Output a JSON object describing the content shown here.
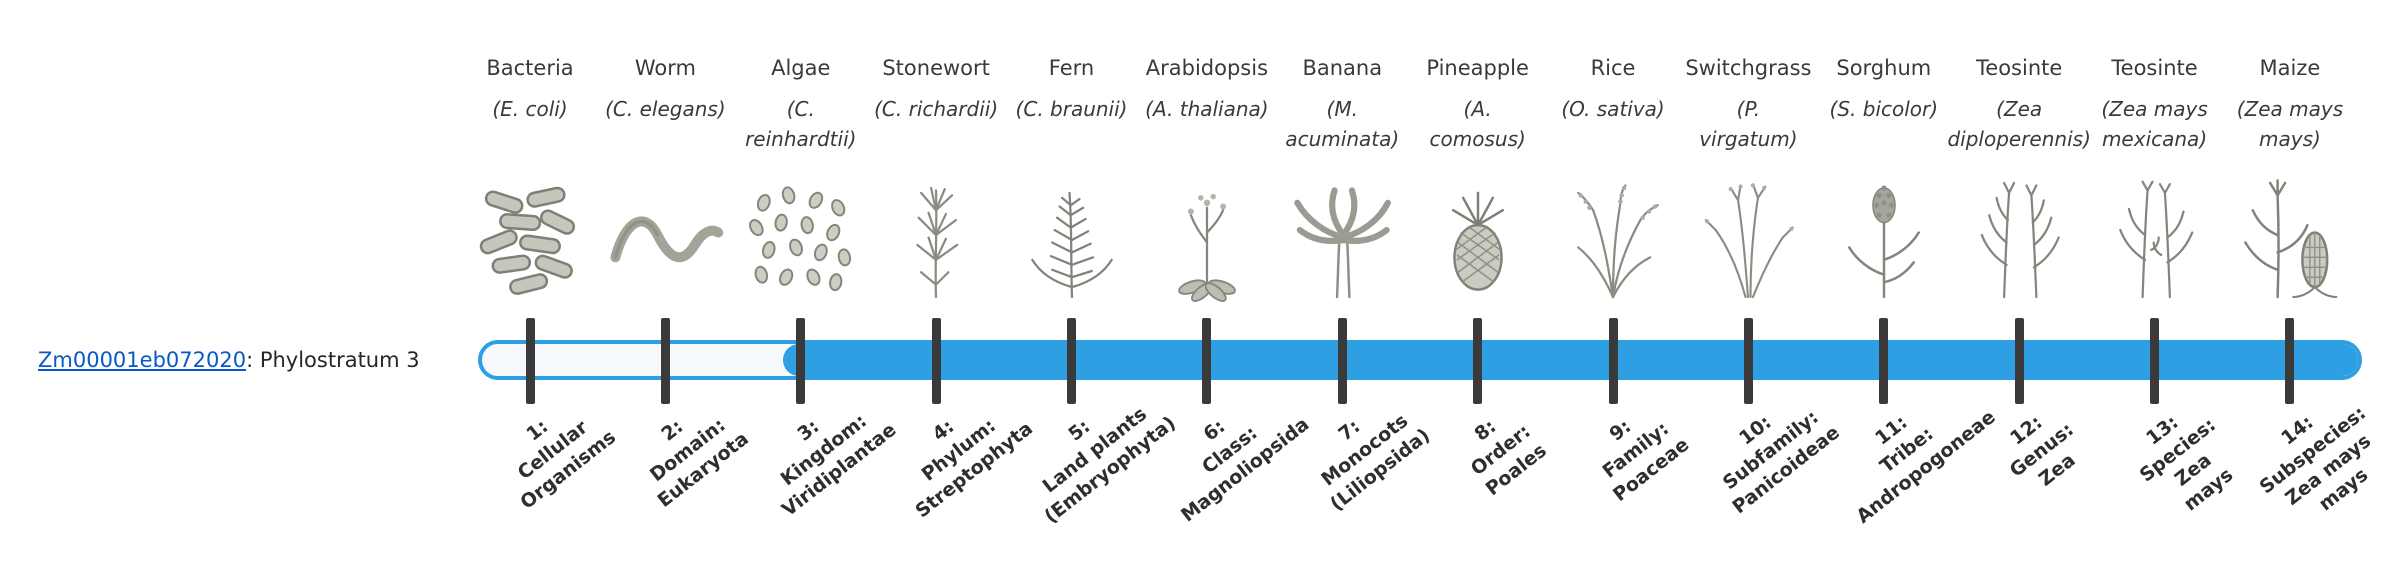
{
  "gene": {
    "id": "Zm00001eb072020",
    "label_suffix": ": Phylostratum 3",
    "phylostratum": 3
  },
  "timeline": {
    "fill_color": "#2f9fe3",
    "track_color": "#f7fafc",
    "tick_color": "#3a3a3a",
    "total_strata": 14
  },
  "columns": [
    {
      "name": "Bacteria",
      "sci": "(E. coli)",
      "icon": "bacteria-icon",
      "label": "1:\nCellular\nOrganisms"
    },
    {
      "name": "Worm",
      "sci": "(C. elegans)",
      "icon": "worm-icon",
      "label": "2:\nDomain:\nEukaryota"
    },
    {
      "name": "Algae",
      "sci": "(C.\nreinhardtii)",
      "icon": "algae-icon",
      "label": "3:\nKingdom:\nViridiplantae"
    },
    {
      "name": "Stonewort",
      "sci": "(C. richardii)",
      "icon": "stonewort-icon",
      "label": "4:\nPhylum:\nStreptophyta"
    },
    {
      "name": "Fern",
      "sci": "(C. braunii)",
      "icon": "fern-icon",
      "label": "5:\nLand plants\n(Embryophyta)"
    },
    {
      "name": "Arabidopsis",
      "sci": "(A. thaliana)",
      "icon": "arabidopsis-icon",
      "label": "6:\nClass:\nMagnoliopsida"
    },
    {
      "name": "Banana",
      "sci": "(M.\nacuminata)",
      "icon": "banana-icon",
      "label": "7:\nMonocots\n(Liliopsida)"
    },
    {
      "name": "Pineapple",
      "sci": "(A.\ncomosus)",
      "icon": "pineapple-icon",
      "label": "8:\nOrder:\nPoales"
    },
    {
      "name": "Rice",
      "sci": "(O. sativa)",
      "icon": "rice-icon",
      "label": "9:\nFamily:\nPoaceae"
    },
    {
      "name": "Switchgrass",
      "sci": "(P.\nvirgatum)",
      "icon": "switchgrass-icon",
      "label": "10:\nSubfamily:\nPanicoideae"
    },
    {
      "name": "Sorghum",
      "sci": "(S. bicolor)",
      "icon": "sorghum-icon",
      "label": "11:\nTribe:\nAndropogoneae"
    },
    {
      "name": "Teosinte",
      "sci": "(Zea\ndiploperennis)",
      "icon": "teosinte-diploperennis-icon",
      "label": "12:\nGenus:\nZea"
    },
    {
      "name": "Teosinte",
      "sci": "(Zea mays\nmexicana)",
      "icon": "teosinte-mexicana-icon",
      "label": "13:\nSpecies:\nZea\nmays"
    },
    {
      "name": "Maize",
      "sci": "(Zea mays\nmays)",
      "icon": "maize-icon",
      "label": "14:\nSubspecies:\nZea mays\nmays"
    }
  ]
}
